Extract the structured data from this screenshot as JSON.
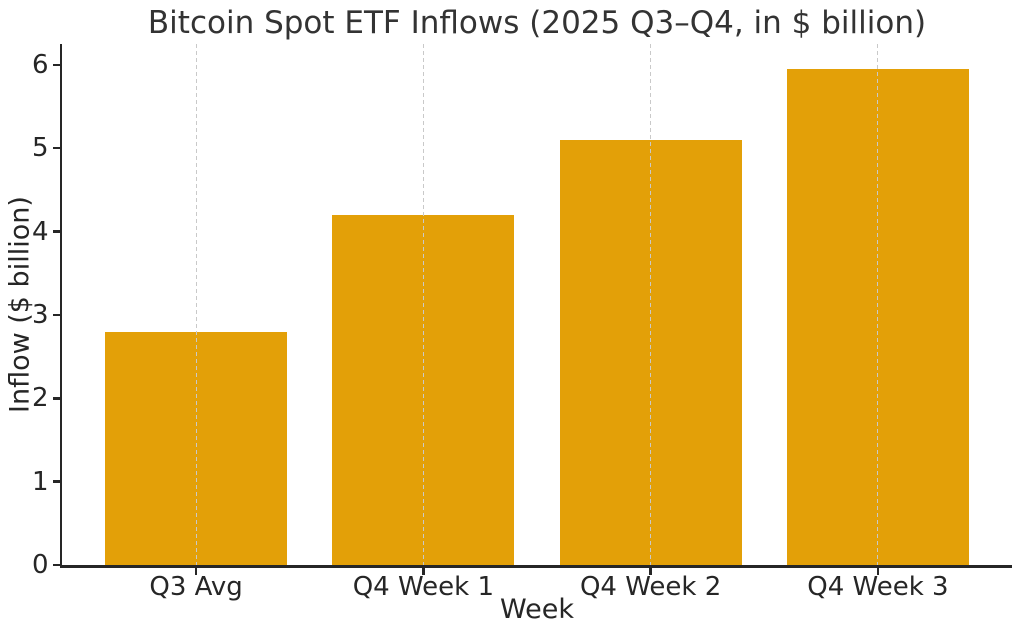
{
  "chart_data": {
    "type": "bar",
    "title": "Bitcoin Spot ETF Inflows (2025 Q3–Q4, in $ billion)",
    "xlabel": "Week",
    "ylabel": "Inflow ($ billion)",
    "categories": [
      "Q3 Avg",
      "Q4 Week 1",
      "Q4 Week 2",
      "Q4 Week 3"
    ],
    "values": [
      2.8,
      4.2,
      5.1,
      5.95
    ],
    "yticks": [
      0,
      1,
      2,
      3,
      4,
      5,
      6
    ],
    "ylim": [
      0,
      6.25
    ],
    "xlim": [
      -0.59,
      3.59
    ],
    "bar_width_fraction": 0.8,
    "grid": "vertical-dashed-at-category-centers",
    "legend": "none",
    "colors": {
      "bar": "#E3A008",
      "axis": "#262626",
      "grid": "#c9c9c9",
      "text": "#262626",
      "title": "#333333",
      "background": "#ffffff"
    }
  }
}
